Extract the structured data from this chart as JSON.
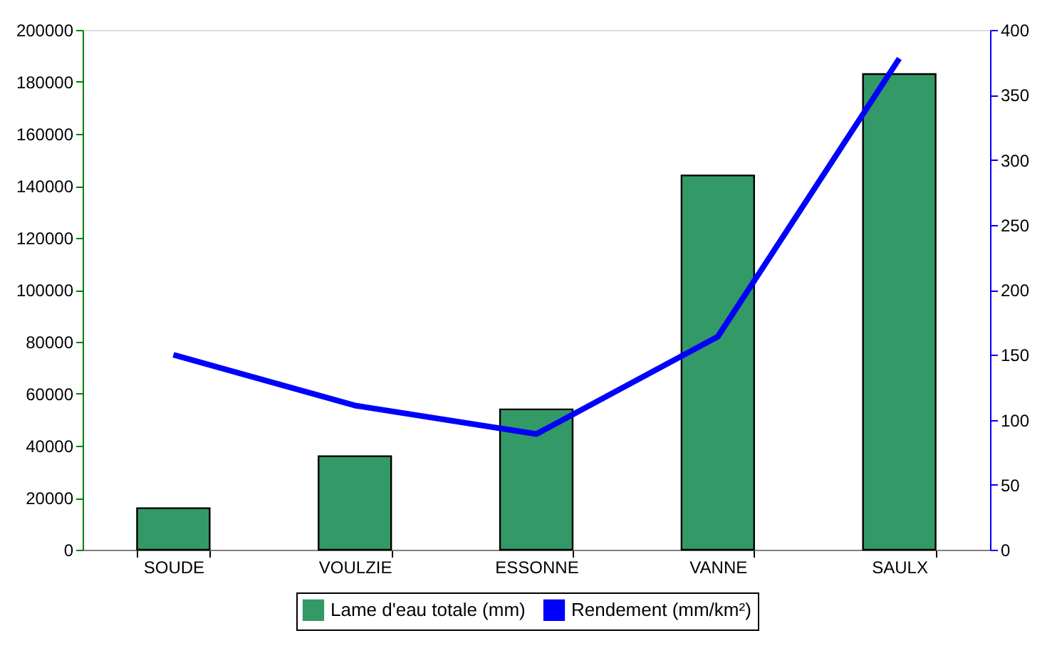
{
  "chart_data": {
    "type": "bar",
    "categories": [
      "SOUDE",
      "VOULZIE",
      "ESSONNE",
      "VANNE",
      "SAULX"
    ],
    "series": [
      {
        "name": "Lame d'eau totale (mm)",
        "color": "#339966",
        "values": [
          16000,
          36000,
          54000,
          144000,
          183000
        ]
      },
      {
        "name": "Rendement (mm/km²)",
        "type": "line",
        "axis": "y2",
        "color": "#0000ff",
        "values": [
          150,
          111,
          89,
          164,
          378
        ]
      }
    ],
    "ylim": [
      0,
      200000
    ],
    "yticks": [
      0,
      20000,
      40000,
      60000,
      80000,
      100000,
      120000,
      140000,
      160000,
      180000,
      200000
    ],
    "y2lim": [
      0,
      400
    ],
    "y2ticks": [
      0,
      50,
      100,
      150,
      200,
      250,
      300,
      350,
      400
    ],
    "grid": false,
    "legend": "bottom",
    "marker": "none",
    "line_style": "solid"
  }
}
